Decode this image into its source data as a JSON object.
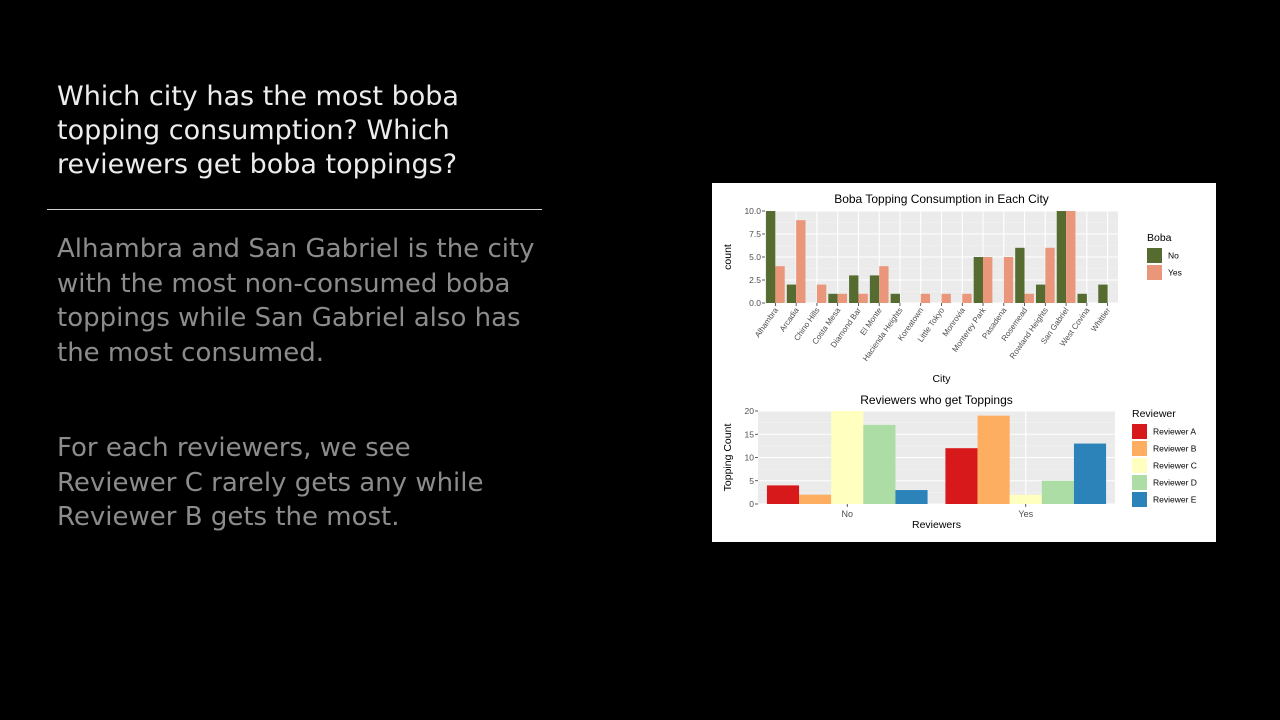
{
  "slide": {
    "title": "Which city has the most boba topping consumption? Which reviewers get boba toppings?",
    "paragraph_1": "Alhambra and San Gabriel is the city with the most non-consumed boba toppings while San Gabriel also has the most consumed.",
    "paragraph_2": "For each reviewers, we see Reviewer C rarely gets any while Reviewer B gets the most."
  },
  "chart_data": [
    {
      "type": "bar",
      "title": "Boba Topping Consumption in Each City",
      "xlabel": "City",
      "ylabel": "count",
      "ylim": [
        0,
        10
      ],
      "yticks": [
        "0.0",
        "2.5",
        "5.0",
        "7.5",
        "10.0"
      ],
      "categories": [
        "Alhambra",
        "Arcadia",
        "Chino Hills",
        "Costa Mesa",
        "Diamond Bar",
        "El Monte",
        "Hacienda Heights",
        "Koreatown",
        "Little Tokyo",
        "Monrovia",
        "Monterey Park",
        "Pasadena",
        "Rosemead",
        "Rowland Heights",
        "San Gabriel",
        "West Covina",
        "Whittier"
      ],
      "legend_title": "Boba",
      "legend_position": "right",
      "grid": true,
      "series": [
        {
          "name": "No",
          "color": "#556b2f",
          "values": [
            10,
            2,
            null,
            1,
            3,
            3,
            1,
            null,
            null,
            null,
            5,
            null,
            6,
            2,
            10,
            1,
            2
          ]
        },
        {
          "name": "Yes",
          "color": "#e9967a",
          "values": [
            4,
            9,
            2,
            1,
            1,
            4,
            null,
            1,
            1,
            1,
            5,
            5,
            1,
            6,
            10,
            null,
            null
          ]
        }
      ]
    },
    {
      "type": "bar",
      "title": "Reviewers who get Toppings",
      "xlabel": "Reviewers",
      "ylabel": "Topping Count",
      "ylim": [
        0,
        20
      ],
      "yticks": [
        "0",
        "5",
        "10",
        "15",
        "20"
      ],
      "categories": [
        "No",
        "Yes"
      ],
      "legend_title": "Reviewer",
      "legend_position": "right",
      "grid": true,
      "series": [
        {
          "name": "Reviewer A",
          "color": "#d7191c",
          "values": [
            4,
            12
          ]
        },
        {
          "name": "Reviewer B",
          "color": "#fdae61",
          "values": [
            2,
            19
          ]
        },
        {
          "name": "Reviewer C",
          "color": "#ffffbf",
          "values": [
            20,
            2
          ]
        },
        {
          "name": "Reviewer D",
          "color": "#abdda4",
          "values": [
            17,
            5
          ]
        },
        {
          "name": "Reviewer E",
          "color": "#2b83ba",
          "values": [
            3,
            13
          ]
        }
      ]
    }
  ]
}
